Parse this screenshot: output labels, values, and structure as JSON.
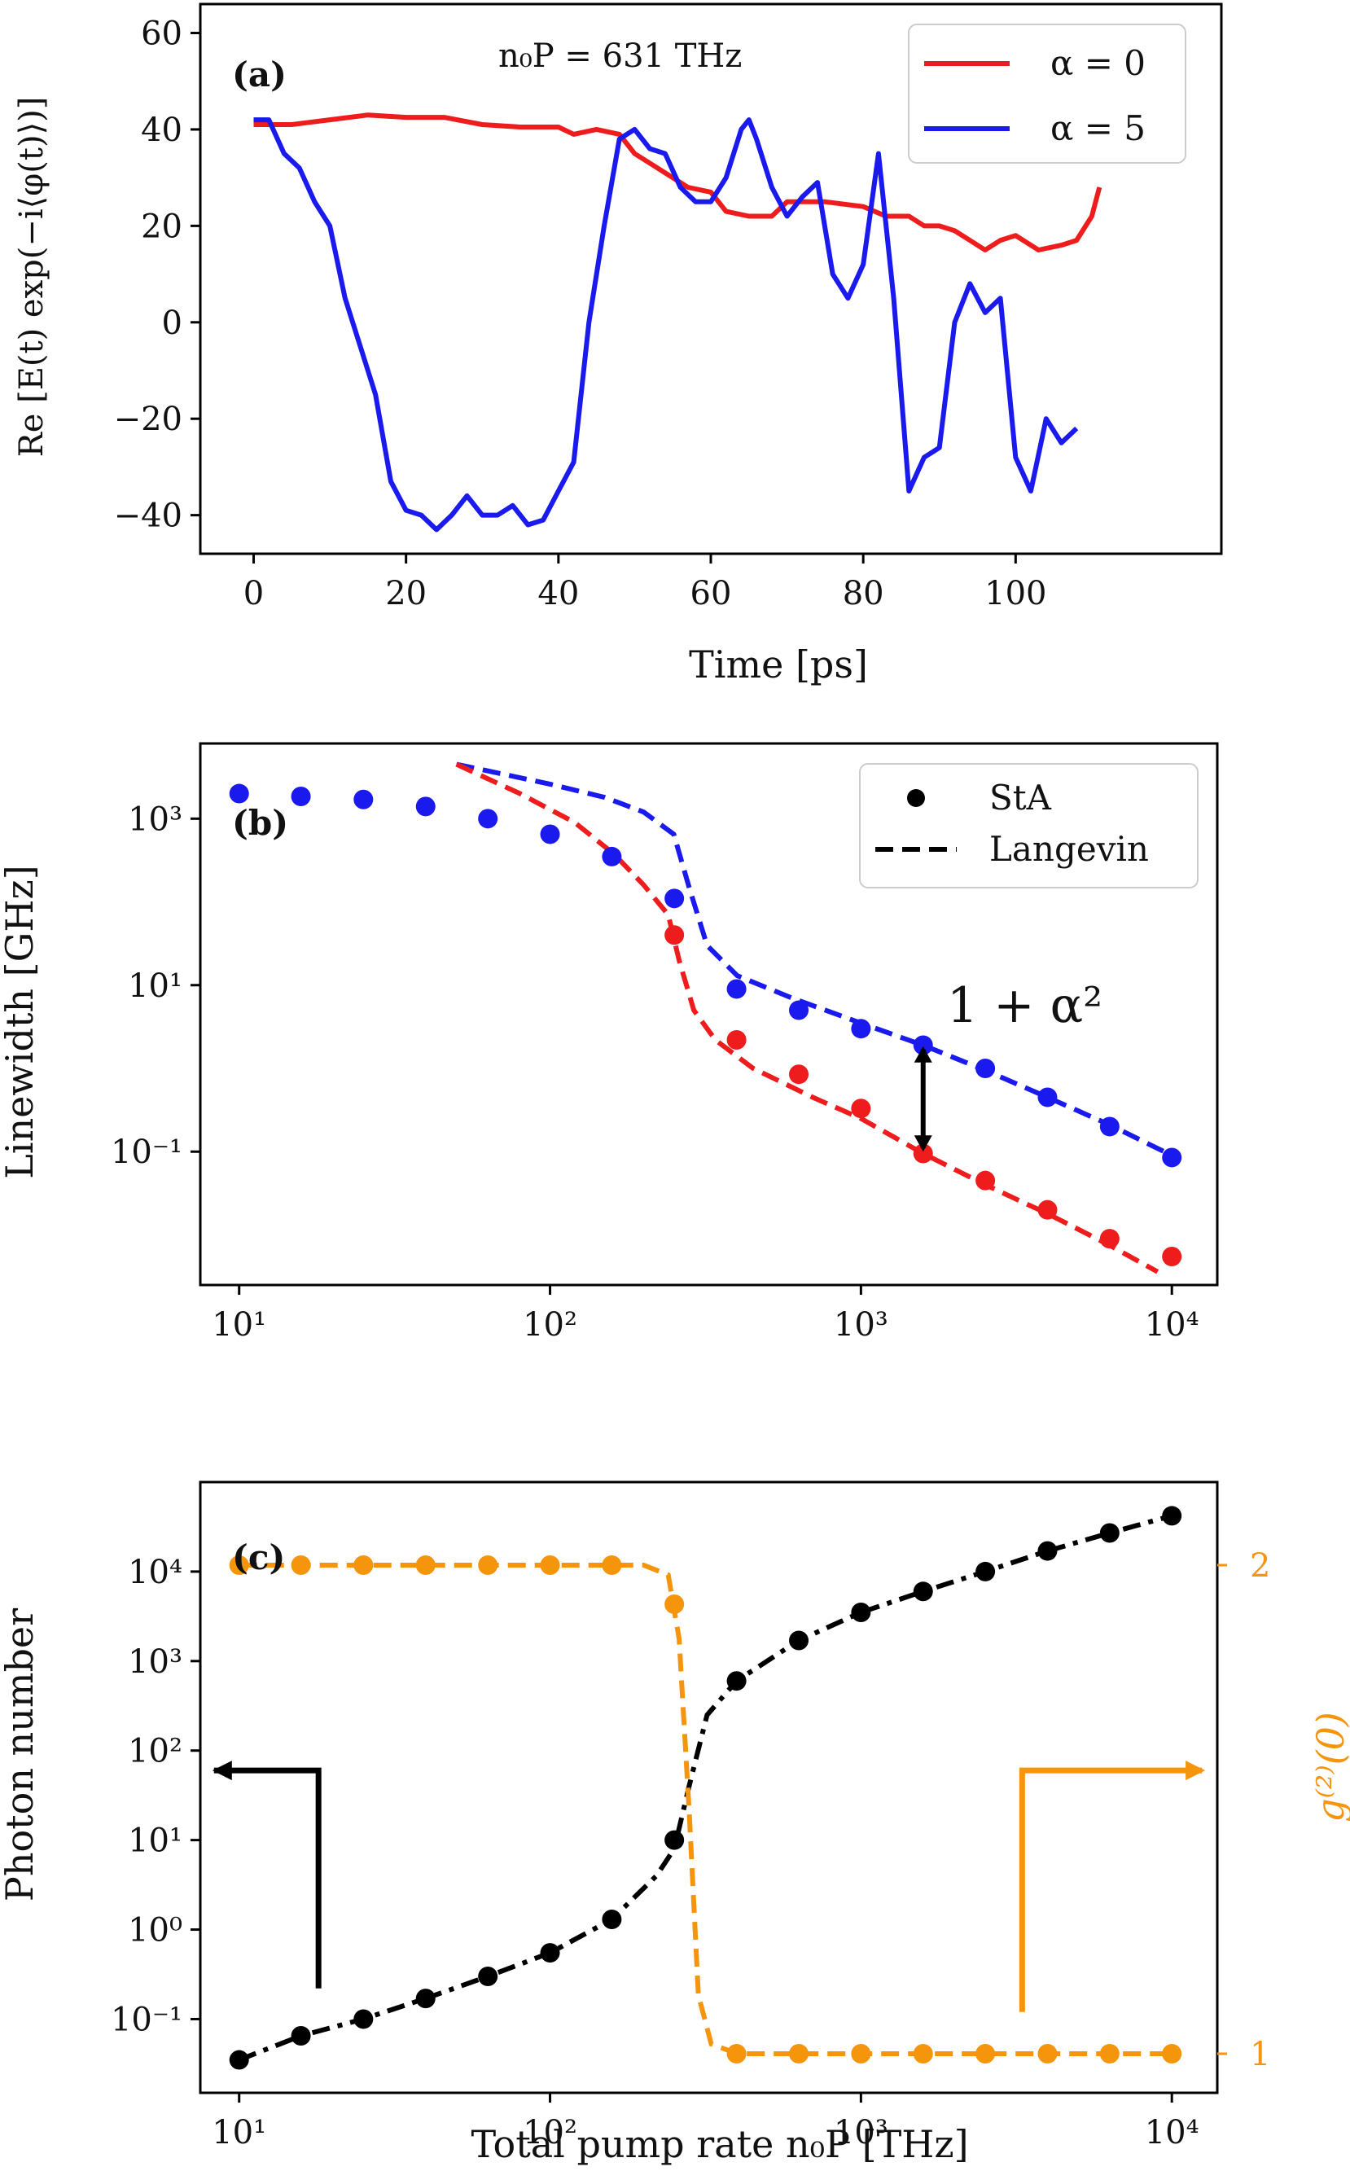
{
  "colors": {
    "red": "#ee1c1c",
    "blue": "#1a1aee",
    "black": "#000000",
    "orange": "#f5950c"
  },
  "chart_data": [
    {
      "id": "a",
      "type": "line",
      "panel_label": "(a)",
      "annotation": "n₀P = 631 THz",
      "xlabel": "Time [ps]",
      "ylabel": "Re [E(t) exp(−i⟨φ(t)⟩)]",
      "xlim": [
        -7,
        127
      ],
      "ylim": [
        -48,
        66
      ],
      "xticks": [
        0,
        20,
        40,
        60,
        80,
        100
      ],
      "xtick_labels": [
        "0",
        "20",
        "40",
        "60",
        "80",
        "100"
      ],
      "yticks": [
        -40,
        -20,
        0,
        20,
        40,
        60
      ],
      "ytick_labels": [
        "−40",
        "−20",
        "0",
        "20",
        "40",
        "60"
      ],
      "legend_position": "top-right",
      "series": [
        {
          "name": "α = 0",
          "color": "#ee1c1c",
          "x": [
            0,
            5,
            10,
            15,
            20,
            25,
            30,
            35,
            40,
            42,
            45,
            48,
            50,
            52,
            55,
            57,
            60,
            62,
            65,
            68,
            70,
            75,
            80,
            83,
            86,
            88,
            90,
            92,
            94,
            96,
            98,
            100,
            103,
            106,
            108,
            110,
            111
          ],
          "y": [
            41,
            41,
            42,
            43,
            42.5,
            42.5,
            41,
            40.5,
            40.5,
            39,
            40,
            39,
            35,
            33,
            30,
            28,
            27,
            23,
            22,
            22,
            25,
            25,
            24,
            22,
            22,
            20,
            20,
            19,
            17,
            15,
            17,
            18,
            15,
            16,
            17,
            22,
            28
          ]
        },
        {
          "name": "α = 5",
          "color": "#1a1aee",
          "x": [
            0,
            2,
            4,
            6,
            8,
            10,
            12,
            14,
            16,
            18,
            20,
            22,
            24,
            26,
            28,
            30,
            32,
            34,
            36,
            38,
            40,
            42,
            44,
            46,
            48,
            50,
            52,
            54,
            56,
            58,
            60,
            62,
            64,
            65,
            66,
            68,
            70,
            72,
            74,
            76,
            78,
            80,
            82,
            84,
            86,
            88,
            90,
            92,
            94,
            96,
            98,
            100,
            102,
            104,
            106,
            108
          ],
          "y": [
            42,
            42,
            35,
            32,
            25,
            20,
            5,
            -5,
            -15,
            -33,
            -39,
            -40,
            -43,
            -40,
            -36,
            -40,
            -40,
            -38,
            -42,
            -41,
            -35,
            -29,
            0,
            20,
            38,
            40,
            36,
            35,
            28,
            25,
            25,
            30,
            40,
            42,
            38,
            28,
            22,
            26,
            29,
            10,
            5,
            12,
            35,
            5,
            -35,
            -28,
            -26,
            0,
            8,
            2,
            5,
            -28,
            -35,
            -20,
            -25,
            -22
          ]
        }
      ]
    },
    {
      "id": "b",
      "type": "scatter",
      "panel_label": "(b)",
      "xlabel": "",
      "ylabel": "Linewidth [GHz]",
      "xscale": "log",
      "yscale": "log",
      "xlim": [
        7.5,
        14000
      ],
      "ylim": [
        0.0025,
        8000
      ],
      "xticks": [
        10,
        100,
        1000,
        10000
      ],
      "xtick_labels": [
        "10¹",
        "10²",
        "10³",
        "10⁴"
      ],
      "yticks": [
        0.1,
        10,
        1000
      ],
      "ytick_labels": [
        "10⁻¹",
        "10¹",
        "10³"
      ],
      "legend_position": "top-right",
      "legend": [
        {
          "label": "StA",
          "marker": "dot"
        },
        {
          "label": "Langevin",
          "marker": "dashed"
        }
      ],
      "annotation": "1 + α²",
      "series": [
        {
          "color": "#1a1aee",
          "style": "dots",
          "x": [
            10,
            15.8,
            25.1,
            39.8,
            63.1,
            100,
            158,
            251,
            398,
            631,
            1000,
            1585,
            2512,
            3981,
            6310,
            10000
          ],
          "y": [
            2000,
            1850,
            1700,
            1400,
            1000,
            650,
            350,
            110,
            9,
            5,
            3,
            1.9,
            1.0,
            0.45,
            0.2,
            0.085
          ]
        },
        {
          "color": "#ee1c1c",
          "style": "dots",
          "x": [
            251,
            398,
            631,
            1000,
            1585,
            2512,
            3981,
            6310,
            10000
          ],
          "y": [
            40,
            2.2,
            0.85,
            0.33,
            0.095,
            0.045,
            0.02,
            0.009,
            0.0055
          ]
        },
        {
          "color": "#1a1aee",
          "style": "dashed",
          "x": [
            50,
            100,
            150,
            200,
            250,
            280,
            320,
            400,
            600,
            1000,
            1585,
            2512,
            3981,
            6310,
            10000
          ],
          "y": [
            4500,
            2600,
            1800,
            1200,
            650,
            150,
            30,
            13,
            7,
            3.5,
            1.9,
            0.95,
            0.45,
            0.21,
            0.09
          ]
        },
        {
          "color": "#ee1c1c",
          "style": "dashed",
          "x": [
            50,
            80,
            120,
            160,
            200,
            240,
            260,
            290,
            340,
            450,
            700,
            1000,
            1585,
            2512,
            3981,
            6310,
            9000
          ],
          "y": [
            4500,
            2000,
            900,
            380,
            160,
            70,
            20,
            5,
            2.2,
            1.0,
            0.45,
            0.25,
            0.095,
            0.04,
            0.018,
            0.0075,
            0.0036
          ]
        }
      ]
    },
    {
      "id": "c",
      "type": "scatter",
      "panel_label": "(c)",
      "xlabel": "Total pump rate n₀P [THz]",
      "ylabel": "Photon number",
      "ylabel_right": "g⁽²⁾(0)",
      "xscale": "log",
      "yscale": "log",
      "xlim": [
        7.5,
        14000
      ],
      "ylim": [
        0.015,
        100000
      ],
      "xticks": [
        10,
        100,
        1000,
        10000
      ],
      "xtick_labels": [
        "10¹",
        "10²",
        "10³",
        "10⁴"
      ],
      "yticks": [
        0.1,
        1,
        10,
        100,
        1000,
        10000
      ],
      "ytick_labels": [
        "10⁻¹",
        "10⁰",
        "10¹",
        "10²",
        "10³",
        "10⁴"
      ],
      "ylim_right": [
        0.92,
        2.17
      ],
      "yticks_right": [
        1,
        2
      ],
      "ytick_labels_right": [
        "1",
        "2"
      ],
      "series": [
        {
          "color": "#000000",
          "style": "dots",
          "axis": "left",
          "x": [
            10,
            15.8,
            25.1,
            39.8,
            63.1,
            100,
            158,
            251,
            398,
            631,
            1000,
            1585,
            2512,
            3981,
            6310,
            10000
          ],
          "y": [
            0.035,
            0.065,
            0.1,
            0.17,
            0.3,
            0.55,
            1.3,
            10,
            600,
            1700,
            3500,
            6000,
            10000,
            17000,
            27000,
            42000
          ]
        },
        {
          "color": "#000000",
          "style": "dashdot",
          "axis": "left",
          "x": [
            10,
            15.8,
            25.1,
            39.8,
            63.1,
            100,
            158,
            220,
            251,
            280,
            320,
            398,
            631,
            1000,
            1585,
            2512,
            3981,
            6310,
            10000
          ],
          "y": [
            0.035,
            0.065,
            0.1,
            0.17,
            0.3,
            0.55,
            1.3,
            4,
            8,
            40,
            250,
            600,
            1700,
            3500,
            6000,
            10000,
            17000,
            27000,
            42000
          ]
        },
        {
          "color": "#f5950c",
          "style": "dots",
          "axis": "right",
          "x": [
            10,
            15.8,
            25.1,
            39.8,
            63.1,
            100,
            158,
            251,
            398,
            631,
            1000,
            1585,
            2512,
            3981,
            6310,
            10000
          ],
          "y": [
            2,
            2,
            2,
            2,
            2,
            2,
            2,
            1.92,
            1,
            1,
            1,
            1,
            1,
            1,
            1,
            1
          ]
        },
        {
          "color": "#f5950c",
          "style": "dashed",
          "axis": "right",
          "x": [
            10,
            100,
            200,
            240,
            260,
            280,
            300,
            330,
            400,
            1000,
            10000
          ],
          "y": [
            2,
            2,
            2,
            1.98,
            1.85,
            1.5,
            1.12,
            1.02,
            1,
            1,
            1
          ]
        }
      ]
    }
  ]
}
